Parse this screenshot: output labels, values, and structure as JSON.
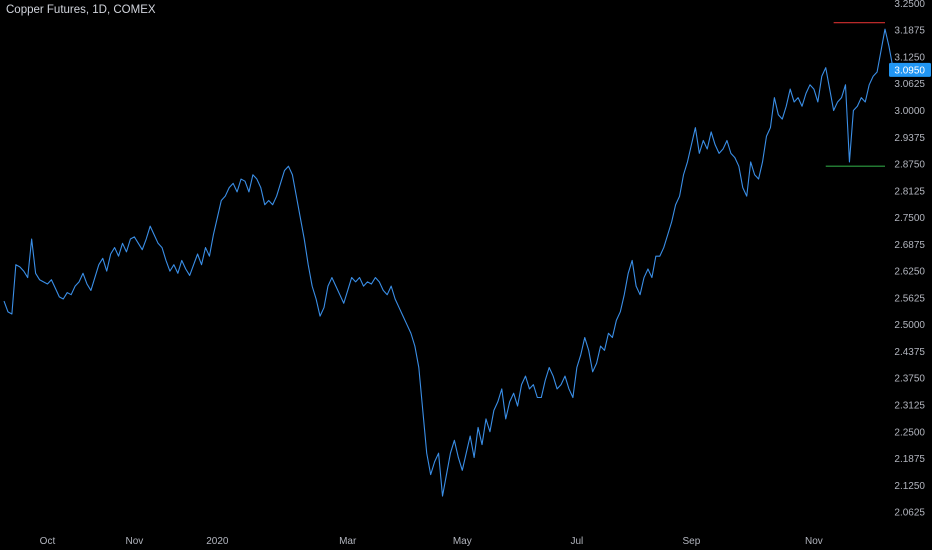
{
  "title": "Copper Futures, 1D, COMEX",
  "colors": {
    "background": "#000000",
    "line": "#3a8ee6",
    "resistance": "#d32f2f",
    "support": "#2ea043",
    "axis_text": "#b2b5be",
    "last_price_bg": "#2196f3"
  },
  "chart_data": {
    "type": "line",
    "title": "Copper Futures, 1D, COMEX",
    "y_ticks": [
      "3.2500",
      "3.1875",
      "3.1250",
      "3.0625",
      "3.0000",
      "2.9375",
      "2.8750",
      "2.8125",
      "2.7500",
      "2.6875",
      "2.6250",
      "2.5625",
      "2.5000",
      "2.4375",
      "2.3750",
      "2.3125",
      "2.2500",
      "2.1875",
      "2.1250",
      "2.0625"
    ],
    "x_ticks": [
      {
        "label": "Oct",
        "index": 11
      },
      {
        "label": "Nov",
        "index": 33
      },
      {
        "label": "2020",
        "index": 54
      },
      {
        "label": "Mar",
        "index": 87
      },
      {
        "label": "May",
        "index": 116
      },
      {
        "label": "Jul",
        "index": 145
      },
      {
        "label": "Sep",
        "index": 174
      },
      {
        "label": "Nov",
        "index": 205
      }
    ],
    "ylim": [
      2.03,
      3.258
    ],
    "x_count": 224,
    "last_price": "3.0950",
    "grid": false,
    "series": [
      {
        "values": [
          2.555,
          2.53,
          2.525,
          2.64,
          2.635,
          2.625,
          2.61,
          2.7,
          2.62,
          2.605,
          2.6,
          2.595,
          2.605,
          2.585,
          2.565,
          2.56,
          2.575,
          2.57,
          2.59,
          2.6,
          2.62,
          2.595,
          2.58,
          2.61,
          2.64,
          2.655,
          2.625,
          2.665,
          2.68,
          2.66,
          2.69,
          2.67,
          2.7,
          2.705,
          2.69,
          2.675,
          2.7,
          2.73,
          2.71,
          2.69,
          2.68,
          2.65,
          2.625,
          2.64,
          2.62,
          2.65,
          2.63,
          2.615,
          2.64,
          2.665,
          2.64,
          2.68,
          2.66,
          2.71,
          2.75,
          2.79,
          2.8,
          2.82,
          2.83,
          2.81,
          2.84,
          2.835,
          2.81,
          2.85,
          2.84,
          2.82,
          2.78,
          2.79,
          2.78,
          2.8,
          2.83,
          2.86,
          2.87,
          2.85,
          2.8,
          2.75,
          2.7,
          2.64,
          2.59,
          2.56,
          2.52,
          2.54,
          2.59,
          2.61,
          2.59,
          2.57,
          2.55,
          2.58,
          2.61,
          2.6,
          2.61,
          2.59,
          2.6,
          2.595,
          2.61,
          2.6,
          2.58,
          2.57,
          2.59,
          2.56,
          2.54,
          2.52,
          2.5,
          2.48,
          2.45,
          2.4,
          2.3,
          2.2,
          2.15,
          2.18,
          2.2,
          2.1,
          2.15,
          2.2,
          2.23,
          2.19,
          2.16,
          2.2,
          2.24,
          2.19,
          2.26,
          2.22,
          2.28,
          2.25,
          2.3,
          2.32,
          2.35,
          2.28,
          2.32,
          2.34,
          2.31,
          2.36,
          2.38,
          2.35,
          2.36,
          2.33,
          2.33,
          2.37,
          2.4,
          2.38,
          2.35,
          2.36,
          2.38,
          2.35,
          2.33,
          2.4,
          2.43,
          2.47,
          2.44,
          2.39,
          2.41,
          2.45,
          2.44,
          2.48,
          2.47,
          2.51,
          2.53,
          2.57,
          2.62,
          2.65,
          2.59,
          2.57,
          2.61,
          2.63,
          2.61,
          2.66,
          2.66,
          2.68,
          2.71,
          2.74,
          2.78,
          2.8,
          2.85,
          2.88,
          2.92,
          2.96,
          2.9,
          2.93,
          2.91,
          2.95,
          2.92,
          2.9,
          2.91,
          2.93,
          2.9,
          2.89,
          2.87,
          2.82,
          2.8,
          2.88,
          2.85,
          2.84,
          2.88,
          2.94,
          2.96,
          3.03,
          2.99,
          2.98,
          3.01,
          3.05,
          3.02,
          3.03,
          3.01,
          3.04,
          3.06,
          3.05,
          3.02,
          3.08,
          3.1,
          3.05,
          3.0,
          3.02,
          3.03,
          3.06,
          2.88,
          3.0,
          3.01,
          3.03,
          3.02,
          3.06,
          3.08,
          3.09,
          3.14,
          3.19,
          3.15,
          3.1,
          3.095
        ]
      }
    ],
    "resistance_level": 3.205,
    "resistance_from_index": 210,
    "support_level": 2.87,
    "support_from_index": 208
  }
}
